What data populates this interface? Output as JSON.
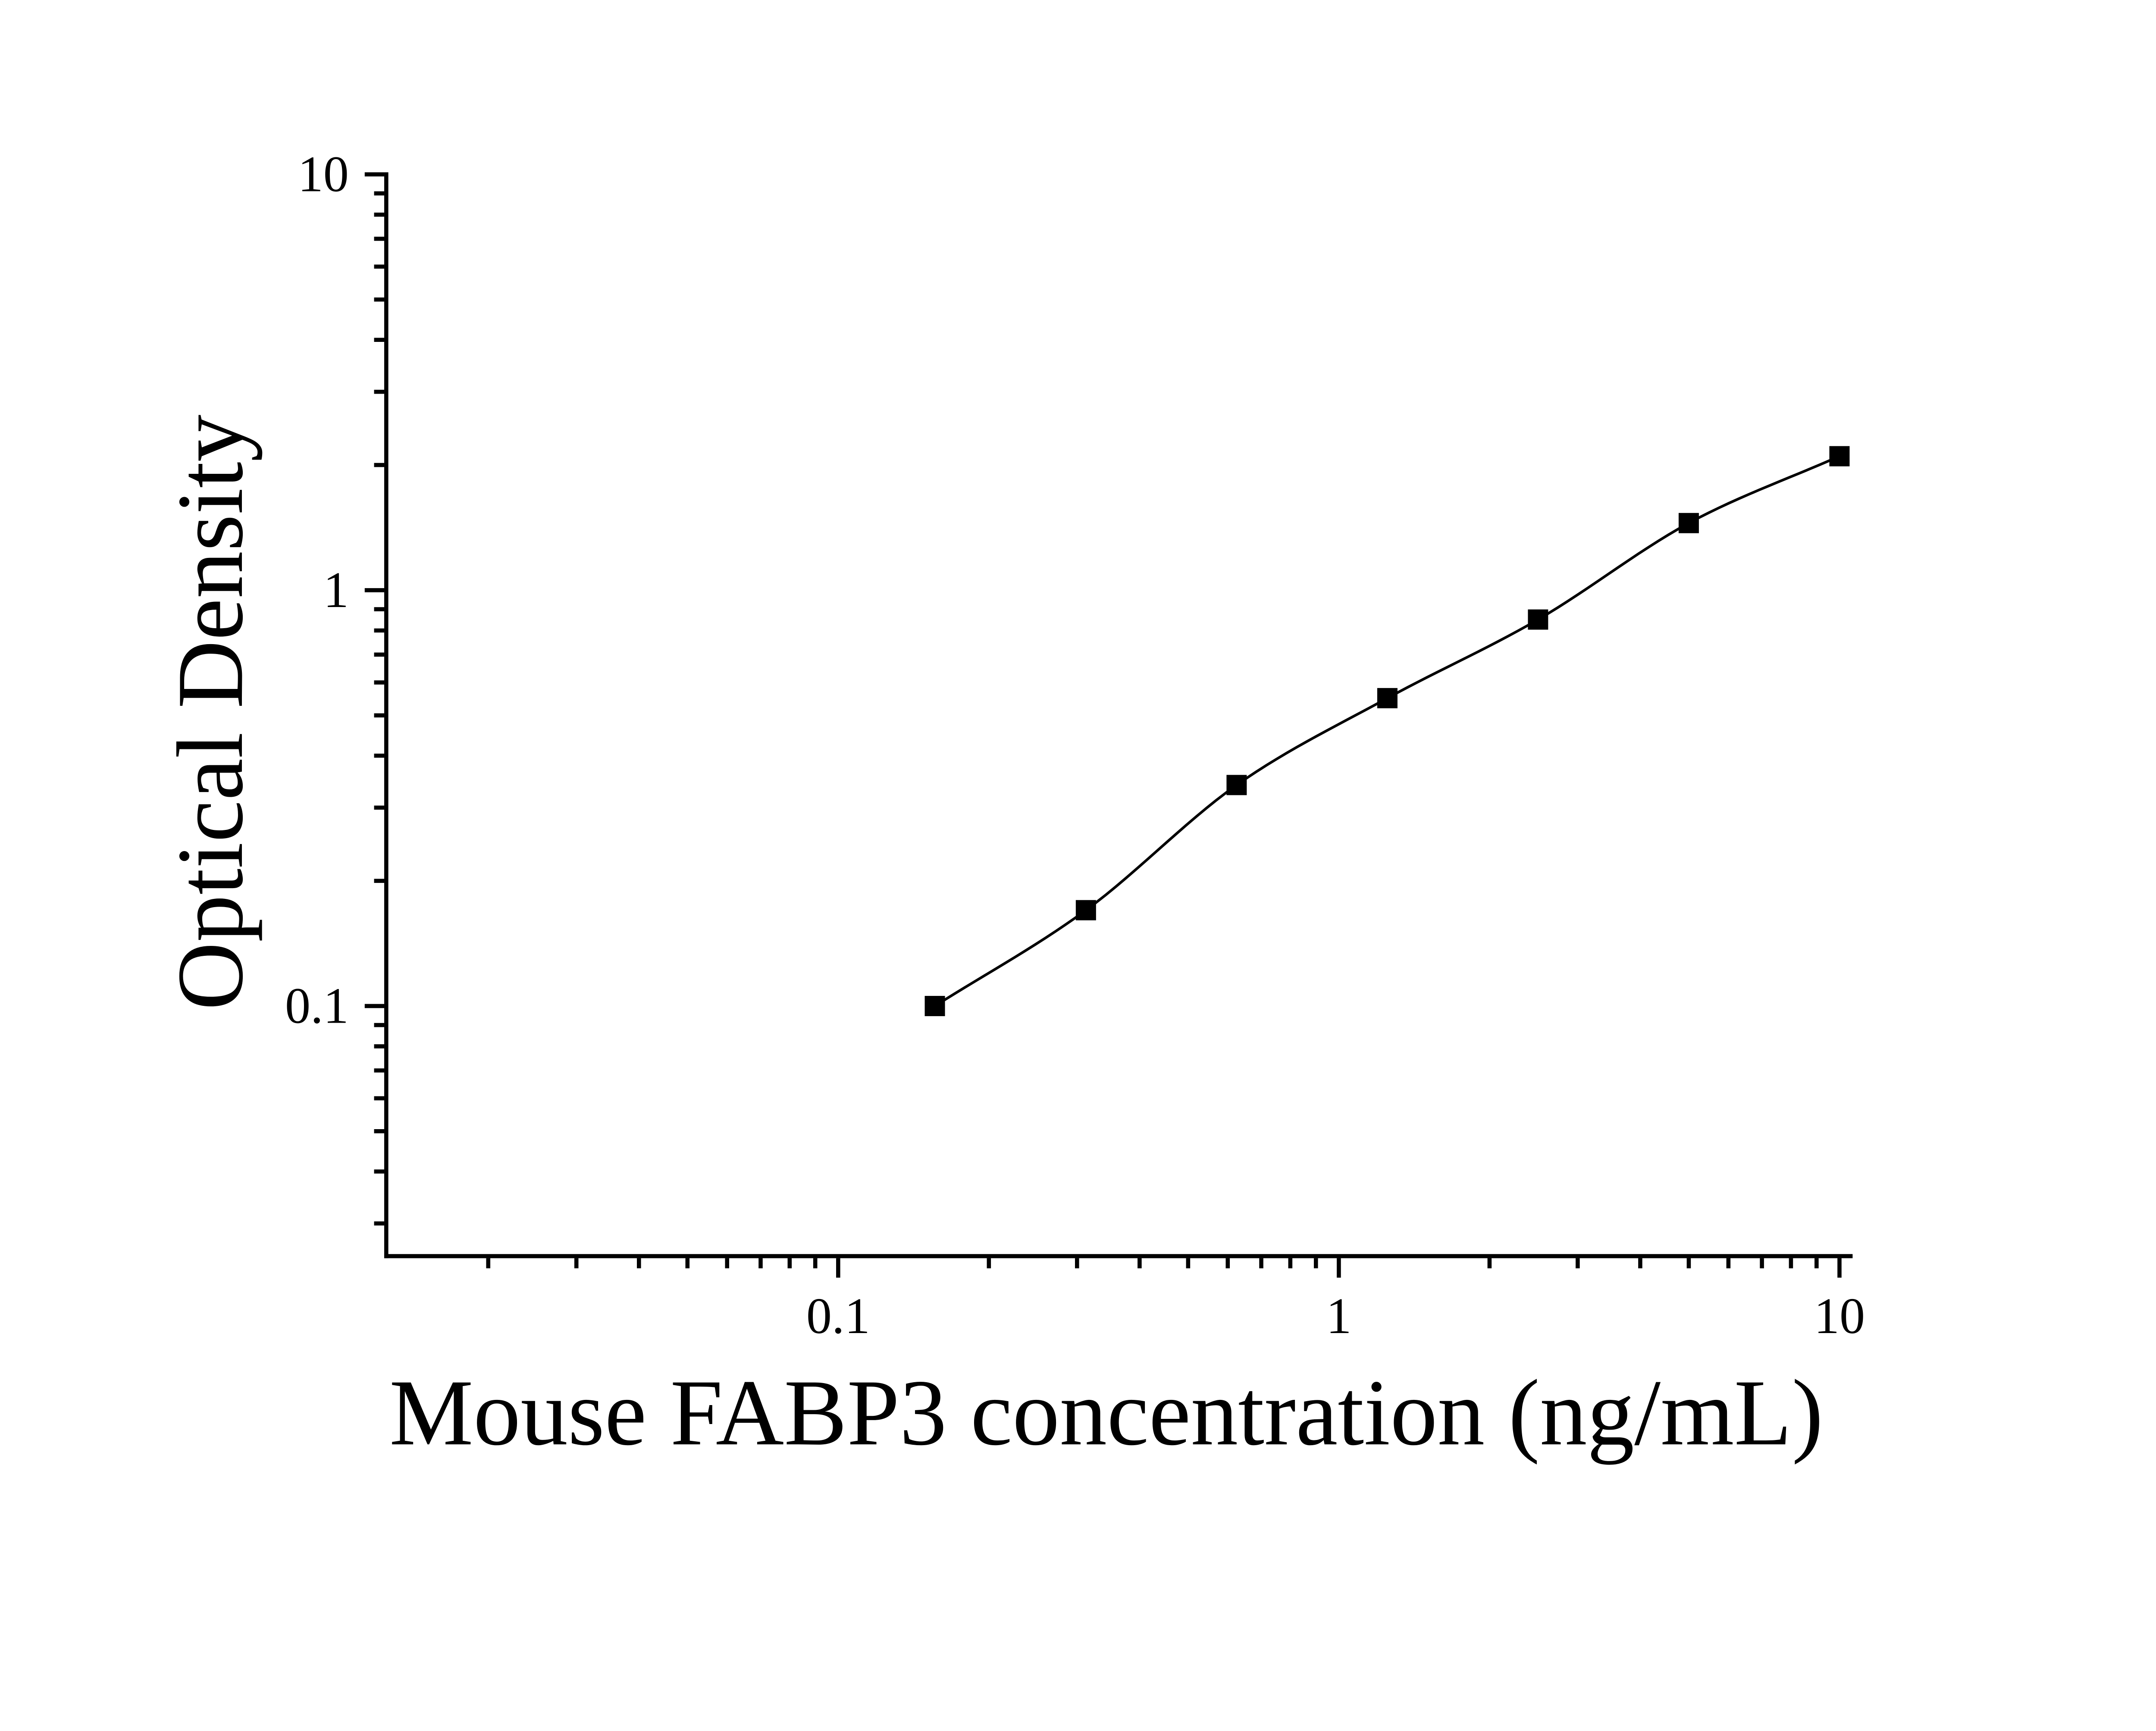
{
  "chart_data": {
    "type": "scatter",
    "title": "",
    "xlabel": "Mouse FABP3 concentration (ng/mL)",
    "ylabel": "Optical Density",
    "x_scale": "log",
    "y_scale": "log",
    "x_tick_labels": [
      "0.1",
      "1",
      "10"
    ],
    "y_tick_labels": [
      "10",
      "1",
      "0.1"
    ],
    "x_range": [
      0.0125,
      10.6
    ],
    "y_range": [
      0.025,
      10
    ],
    "grid": false,
    "legend": "none",
    "series": [
      {
        "name": "standard-curve",
        "marker": "filled-square",
        "line": "smooth",
        "x": [
          0.156,
          0.3125,
          0.625,
          1.25,
          2.5,
          5,
          10
        ],
        "y": [
          0.1,
          0.17,
          0.34,
          0.55,
          0.85,
          1.45,
          2.1
        ]
      }
    ],
    "colors": {
      "foreground": "#000000",
      "background": "#ffffff"
    }
  }
}
